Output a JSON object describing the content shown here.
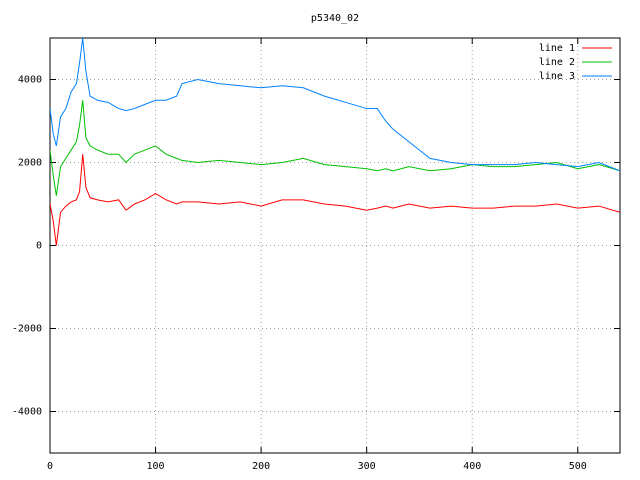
{
  "chart_data": {
    "type": "line",
    "title": "p5340_02",
    "x": [
      0,
      3,
      6,
      10,
      15,
      20,
      25,
      28,
      31,
      34,
      38,
      45,
      55,
      65,
      72,
      80,
      90,
      100,
      110,
      120,
      125,
      140,
      160,
      180,
      200,
      220,
      240,
      260,
      280,
      300,
      310,
      318,
      325,
      340,
      360,
      380,
      400,
      420,
      440,
      460,
      480,
      500,
      520,
      540
    ],
    "series": [
      {
        "name": "line 1",
        "color": "#ff0000",
        "values": [
          1000,
          600,
          0,
          800,
          950,
          1050,
          1100,
          1300,
          2200,
          1400,
          1150,
          1100,
          1050,
          1100,
          850,
          1000,
          1100,
          1250,
          1100,
          1000,
          1050,
          1050,
          1000,
          1050,
          950,
          1100,
          1100,
          1000,
          950,
          850,
          900,
          950,
          900,
          1000,
          900,
          950,
          900,
          900,
          950,
          950,
          1000,
          900,
          950,
          800
        ]
      },
      {
        "name": "line 2",
        "color": "#00c000",
        "values": [
          2300,
          1700,
          1200,
          1900,
          2100,
          2300,
          2500,
          2900,
          3500,
          2600,
          2400,
          2300,
          2200,
          2200,
          2000,
          2200,
          2300,
          2400,
          2200,
          2100,
          2050,
          2000,
          2050,
          2000,
          1950,
          2000,
          2100,
          1950,
          1900,
          1850,
          1800,
          1850,
          1800,
          1900,
          1800,
          1850,
          1950,
          1900,
          1900,
          1950,
          2000,
          1850,
          1950,
          1800
        ]
      },
      {
        "name": "line 3",
        "color": "#0080ff",
        "values": [
          3300,
          2700,
          2400,
          3100,
          3300,
          3700,
          3900,
          4400,
          5000,
          4200,
          3600,
          3500,
          3450,
          3300,
          3250,
          3300,
          3400,
          3500,
          3500,
          3600,
          3900,
          4000,
          3900,
          3850,
          3800,
          3850,
          3800,
          3600,
          3450,
          3300,
          3300,
          3000,
          2800,
          2500,
          2100,
          2000,
          1950,
          1950,
          1950,
          2000,
          1950,
          1900,
          2000,
          1800
        ]
      }
    ],
    "xlim": [
      0,
      540
    ],
    "ylim": [
      -5000,
      5000
    ],
    "xticks": [
      0,
      100,
      200,
      300,
      400,
      500
    ],
    "yticks": [
      -4000,
      -2000,
      0,
      2000,
      4000
    ],
    "grid": true,
    "legend": "top-right"
  }
}
